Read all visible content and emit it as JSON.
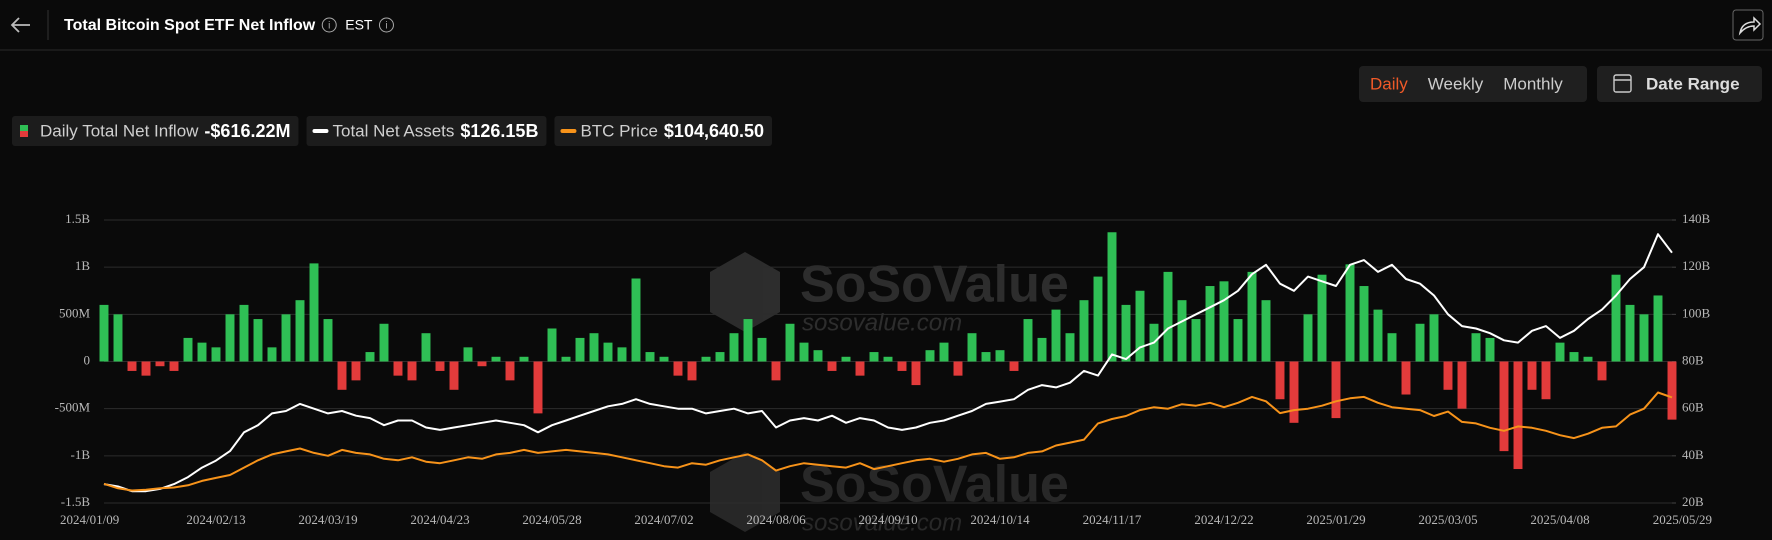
{
  "header": {
    "title": "Total Bitcoin Spot ETF Net Inflow",
    "timezone": "EST"
  },
  "controls": {
    "periods": [
      "Daily",
      "Weekly",
      "Monthly"
    ],
    "active_period": 0,
    "date_range": "Date Range"
  },
  "watermark": {
    "brand": "SoSoValue",
    "site": "sosovalue.com"
  },
  "chart_data": {
    "type": "bar",
    "categories": [
      "2024/01/09",
      null,
      null,
      null,
      null,
      null,
      null,
      null,
      "2024/02/13",
      null,
      null,
      null,
      null,
      null,
      null,
      null,
      "2024/03/19",
      null,
      null,
      null,
      null,
      null,
      null,
      null,
      "2024/04/23",
      null,
      null,
      null,
      null,
      null,
      null,
      null,
      "2024/05/28",
      null,
      null,
      null,
      null,
      null,
      null,
      null,
      "2024/07/02",
      null,
      null,
      null,
      null,
      null,
      null,
      null,
      "2024/08/06",
      null,
      null,
      null,
      null,
      null,
      null,
      null,
      "2024/09/10",
      null,
      null,
      null,
      null,
      null,
      null,
      null,
      "2024/10/14",
      null,
      null,
      null,
      null,
      null,
      null,
      null,
      "2024/11/17",
      null,
      null,
      null,
      null,
      null,
      null,
      null,
      "2024/12/22",
      null,
      null,
      null,
      null,
      null,
      null,
      null,
      "2025/01/29",
      null,
      null,
      null,
      null,
      null,
      null,
      null,
      "2025/03/05",
      null,
      null,
      null,
      null,
      null,
      null,
      null,
      "2025/04/08",
      null,
      null,
      null,
      null,
      null,
      null,
      null,
      "2025/05/29"
    ],
    "series": [
      {
        "name": "Daily Total Net Inflow",
        "latest_label": "-$616.22M",
        "color": "#2fbf55",
        "negative_color": "#e23b3b",
        "values": [
          0.6,
          0.5,
          -0.1,
          -0.15,
          -0.05,
          -0.1,
          0.25,
          0.2,
          0.15,
          0.5,
          0.6,
          0.45,
          0.15,
          0.5,
          0.65,
          1.04,
          0.45,
          -0.3,
          -0.2,
          0.1,
          0.4,
          -0.15,
          -0.2,
          0.3,
          -0.1,
          -0.3,
          0.15,
          -0.05,
          0.05,
          -0.2,
          0.05,
          -0.55,
          0.35,
          0.05,
          0.25,
          0.3,
          0.2,
          0.15,
          0.88,
          0.1,
          0.05,
          -0.15,
          -0.2,
          0.05,
          0.1,
          0.3,
          0.45,
          0.25,
          -0.2,
          0.4,
          0.2,
          0.12,
          -0.1,
          0.05,
          -0.15,
          0.1,
          0.05,
          -0.1,
          -0.25,
          0.12,
          0.2,
          -0.15,
          0.3,
          0.1,
          0.12,
          -0.1,
          0.45,
          0.25,
          0.55,
          0.3,
          0.65,
          0.9,
          1.37,
          0.6,
          0.75,
          0.4,
          0.95,
          0.65,
          0.45,
          0.8,
          0.85,
          0.45,
          0.95,
          0.65,
          -0.4,
          -0.65,
          0.5,
          0.92,
          -0.6,
          1.03,
          0.8,
          0.55,
          0.3,
          -0.35,
          0.4,
          0.5,
          -0.3,
          -0.5,
          0.3,
          0.25,
          -0.95,
          -1.14,
          -0.3,
          -0.4,
          0.2,
          0.1,
          0.05,
          -0.2,
          0.92,
          0.6,
          0.5,
          0.7,
          -0.61622
        ]
      },
      {
        "name": "Total Net Assets",
        "latest_label": "$126.15B",
        "color": "#ffffff",
        "axis": "y2",
        "values": [
          28,
          27,
          25,
          25,
          26,
          28,
          31,
          35,
          38,
          42,
          50,
          53,
          58,
          59,
          62,
          60,
          58,
          59,
          57,
          56,
          53,
          55,
          55,
          52,
          51,
          52,
          53,
          54,
          55,
          54,
          53,
          50,
          53,
          55,
          57,
          59,
          61,
          62,
          64,
          62,
          61,
          60,
          60,
          58,
          59,
          60,
          58,
          59,
          52,
          55,
          56,
          55,
          57,
          54,
          56,
          55,
          52,
          51,
          52,
          54,
          55,
          57,
          59,
          62,
          63,
          64,
          68,
          70,
          69,
          71,
          76,
          74,
          83,
          81,
          86,
          88,
          94,
          97,
          100,
          103,
          106,
          110,
          117,
          121,
          113,
          110,
          116,
          114,
          112,
          121,
          123,
          118,
          121,
          115,
          113,
          108,
          100,
          95,
          94,
          92,
          89,
          88,
          93,
          95,
          90,
          93,
          98,
          102,
          108,
          115,
          120,
          134,
          126.15
        ]
      },
      {
        "name": "BTC Price",
        "latest_label": "$104,640.50",
        "color": "#f7931a",
        "axis": "y3",
        "values": [
          46000,
          43000,
          41500,
          42000,
          43000,
          43500,
          45000,
          48000,
          50000,
          52000,
          57000,
          62000,
          66000,
          68000,
          70000,
          67000,
          65000,
          69000,
          67000,
          66000,
          63000,
          62000,
          64000,
          61000,
          60000,
          62000,
          64000,
          63000,
          66000,
          67000,
          69000,
          67000,
          68000,
          69000,
          68000,
          67000,
          66000,
          64000,
          62000,
          60000,
          58000,
          57000,
          60000,
          59000,
          62000,
          64000,
          66000,
          62000,
          55000,
          58000,
          60000,
          59000,
          58000,
          57000,
          60000,
          56000,
          58000,
          60000,
          62000,
          63000,
          61000,
          63000,
          66000,
          67000,
          63000,
          64000,
          67000,
          68000,
          72000,
          74000,
          76000,
          87000,
          90000,
          92000,
          96000,
          98000,
          97000,
          100000,
          99000,
          101000,
          98000,
          101000,
          105000,
          102000,
          94000,
          96000,
          97000,
          99000,
          102000,
          104000,
          105000,
          101000,
          98000,
          97000,
          96000,
          92000,
          95000,
          88000,
          87000,
          84000,
          82000,
          85000,
          84000,
          82000,
          79000,
          77000,
          80000,
          84000,
          85000,
          93000,
          97000,
          108000,
          104640.5
        ]
      }
    ],
    "ylim": [
      -1.5,
      1.5
    ],
    "yticks": [
      {
        "value": -1.5,
        "label": "-1.5B"
      },
      {
        "value": -1,
        "label": "-1B"
      },
      {
        "value": -0.5,
        "label": "-500M"
      },
      0,
      {
        "value": 0.5,
        "label": "500M"
      },
      {
        "value": 1,
        "label": "1B"
      },
      {
        "value": 1.5,
        "label": "1.5B"
      }
    ],
    "y2lim": [
      20,
      140
    ],
    "y2ticks": [
      {
        "value": 20,
        "label": "20B"
      },
      {
        "value": 40,
        "label": "40B"
      },
      {
        "value": 60,
        "label": "60B"
      },
      {
        "value": 80,
        "label": "80B"
      },
      {
        "value": 100,
        "label": "100B"
      },
      {
        "value": 120,
        "label": "120B"
      },
      {
        "value": 140,
        "label": "140B"
      }
    ],
    "y3lim": [
      33000,
      225000
    ],
    "grid": true
  }
}
